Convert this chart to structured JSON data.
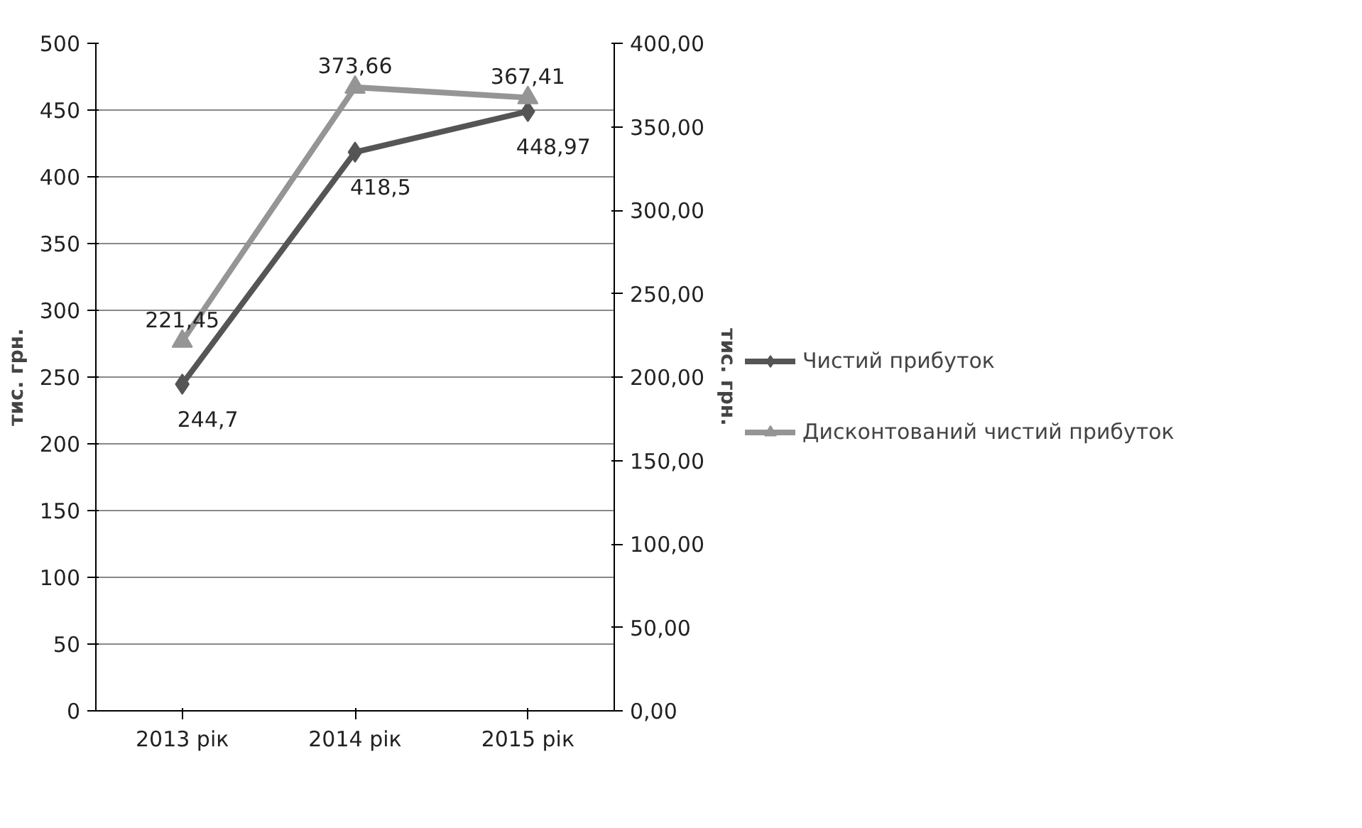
{
  "chart_data": {
    "type": "line",
    "categories": [
      "2013 рік",
      "2014 рік",
      "2015 рік"
    ],
    "ylabel": "тис. грн.",
    "y2label": "тис. грн.",
    "ylim": [
      0,
      500
    ],
    "yticks": [
      0,
      50,
      100,
      150,
      200,
      250,
      300,
      350,
      400,
      450,
      500
    ],
    "y2lim": [
      0,
      400
    ],
    "y2ticks": [
      {
        "value": 0,
        "label": "0,00"
      },
      {
        "value": 50,
        "label": "50,00"
      },
      {
        "value": 100,
        "label": "100,00"
      },
      {
        "value": 150,
        "label": "150,00"
      },
      {
        "value": 200,
        "label": "200,00"
      },
      {
        "value": 250,
        "label": "250,00"
      },
      {
        "value": 300,
        "label": "300,00"
      },
      {
        "value": 350,
        "label": "350,00"
      },
      {
        "value": 400,
        "label": "400,00"
      }
    ],
    "grid": "y",
    "legend": "right",
    "series": [
      {
        "name": "Чистий прибуток",
        "color": "#555555",
        "marker": "diamond",
        "values": [
          244.7,
          418.5,
          448.97
        ],
        "value_labels": [
          "244,7",
          "418,5",
          "448,97"
        ]
      },
      {
        "name": "Дисконтований чистий прибуток",
        "color": "#959595",
        "marker": "triangle",
        "axis": "y2",
        "values": [
          221.45,
          373.66,
          367.41
        ],
        "value_labels": [
          "221,45",
          "373,66",
          "367,41"
        ]
      }
    ]
  }
}
